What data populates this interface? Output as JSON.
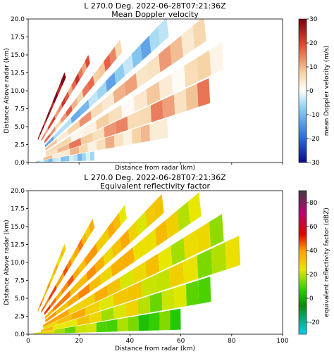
{
  "chart_data": [
    {
      "type": "heatmap",
      "title": "L 270.0 Deg. 2022-06-28T07:21:36Z",
      "subtitle": "Mean Doppler velocity",
      "xlabel": "Distance from radar (km)",
      "ylabel": "Distance Above radar  (km)",
      "xlim": [
        0,
        100
      ],
      "ylim": [
        0,
        20
      ],
      "x_ticks_shown": false,
      "y_ticks": [
        "0.0",
        "2.5",
        "5.0",
        "7.5",
        "10.0",
        "12.5",
        "15.0",
        "17.5",
        "20.0"
      ],
      "colorbar": {
        "label": "mean Doppler velocity (m/s)",
        "range": [
          -30,
          30
        ],
        "ticks": [
          "30",
          "20",
          "10",
          "0",
          "-10",
          "-20",
          "-30"
        ],
        "colors": [
          "#0a0a8c",
          "#2f6fe0",
          "#8fd0f0",
          "#ffffff",
          "#f6d6a8",
          "#e34a33",
          "#7a0010"
        ]
      },
      "approx_rays": [
        {
          "elev_deg": 2,
          "range_km": [
            3,
            26
          ],
          "velocity": -8
        },
        {
          "elev_deg": 5,
          "range_km": [
            6,
            55
          ],
          "velocity": 8
        },
        {
          "elev_deg": 8,
          "range_km": [
            7,
            72
          ],
          "velocity": 12
        },
        {
          "elev_deg": 11,
          "range_km": [
            7,
            78
          ],
          "velocity": 6
        },
        {
          "elev_deg": 15,
          "range_km": [
            7,
            72
          ],
          "velocity": 10
        },
        {
          "elev_deg": 19,
          "range_km": [
            7,
            58
          ],
          "velocity": -10
        },
        {
          "elev_deg": 24,
          "range_km": [
            7,
            40
          ],
          "velocity": 14
        },
        {
          "elev_deg": 31,
          "range_km": [
            6,
            28
          ],
          "velocity": 18
        },
        {
          "elev_deg": 40,
          "range_km": [
            5,
            19
          ],
          "velocity": 28
        }
      ]
    },
    {
      "type": "heatmap",
      "title": "L 270.0 Deg. 2022-06-28T07:21:36Z",
      "subtitle": "Equivalent reflectivity factor",
      "xlabel": "Distance from radar (km)",
      "ylabel": "Distance Above radar  (km)",
      "xlim": [
        0,
        100
      ],
      "ylim": [
        0,
        20
      ],
      "x_ticks": [
        "0",
        "20",
        "40",
        "60",
        "80",
        "100"
      ],
      "y_ticks": [
        "0.0",
        "2.5",
        "5.0",
        "7.5",
        "10.0",
        "12.5",
        "15.0",
        "17.5",
        "20.0"
      ],
      "colorbar": {
        "label": "equivalent reflectivity factor (dBZ)",
        "range": [
          -30,
          90
        ],
        "ticks": [
          "80",
          "60",
          "40",
          "20",
          "0",
          "-20"
        ],
        "colors": [
          "#00d0f0",
          "#0a8a0a",
          "#22cc00",
          "#e8e800",
          "#ffa000",
          "#e00000",
          "#c00070",
          "#404040"
        ]
      },
      "approx_rays": [
        {
          "elev_deg": 2,
          "range_km": [
            2,
            60
          ],
          "dbz": 20
        },
        {
          "elev_deg": 5,
          "range_km": [
            5,
            72
          ],
          "dbz": 28
        },
        {
          "elev_deg": 8,
          "range_km": [
            6,
            84
          ],
          "dbz": 32
        },
        {
          "elev_deg": 11,
          "range_km": [
            6,
            78
          ],
          "dbz": 34
        },
        {
          "elev_deg": 15,
          "range_km": [
            7,
            70
          ],
          "dbz": 38
        },
        {
          "elev_deg": 19,
          "range_km": [
            7,
            56
          ],
          "dbz": 40
        },
        {
          "elev_deg": 24,
          "range_km": [
            7,
            42
          ],
          "dbz": 44
        },
        {
          "elev_deg": 31,
          "range_km": [
            6,
            30
          ],
          "dbz": 48
        },
        {
          "elev_deg": 40,
          "range_km": [
            5,
            19
          ],
          "dbz": 40
        }
      ]
    }
  ]
}
